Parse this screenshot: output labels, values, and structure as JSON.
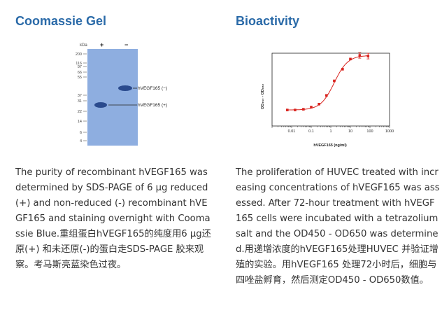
{
  "left": {
    "title": "Coomassie Gel",
    "description": "The purity of recombinant hVEGF165 was determined by SDS-PAGE of 6 µg reduced (+) and non-reduced (-) recombinant hVEGF165 and staining overnight with Coomassie Blue.重组蛋白hVEGF165的纯度用6 µg还原(+) 和未还原(-)的蛋白走SDS-PAGE 胶来观察。考马斯亮蓝染色过夜。",
    "gel": {
      "kda_label": "kDa",
      "markers": [
        "200",
        "116",
        "97",
        "66",
        "55",
        "37",
        "31",
        "22",
        "14",
        "6",
        "4"
      ],
      "lane_plus": "+",
      "lane_minus": "−",
      "band_nonreduced": "hVEGF165 (−)",
      "band_reduced": "hVEGF165 (+)",
      "gel_color": "#8eaee0"
    }
  },
  "right": {
    "title": "Bioactivity",
    "description": "The proliferation of HUVEC treated with increasing concentrations of hVEGF165 was assessed. After 72-hour treatment with hVEGF165 cells were incubated with a tetrazolium salt and the OD450 - OD650 was determined.用递增浓度的hVEGF165处理HUVEC 并验证增殖的实验。用hVEGF165 处理72小时后，细胞与四唑盐孵育，然后测定OD450 - OD650数值。",
    "chart_data": {
      "type": "scatter",
      "xlabel": "hVEGF165 (ng/ml)",
      "ylabel": "OD₄₅₀ - OD₆₅₀",
      "x_scale": "log",
      "xlim": [
        0.001,
        1000
      ],
      "x_ticks": [
        "0.01",
        "0.1",
        "1",
        "10",
        "100",
        "1000"
      ],
      "ylim": [
        0,
        1
      ],
      "series": [
        {
          "x": [
            0.006,
            0.015,
            0.04,
            0.1,
            0.25,
            0.6,
            1.5,
            4,
            10,
            30,
            80
          ],
          "y": [
            0.22,
            0.22,
            0.23,
            0.26,
            0.3,
            0.42,
            0.62,
            0.78,
            0.92,
            0.97,
            0.96
          ],
          "color": "#d9231e"
        }
      ]
    }
  }
}
